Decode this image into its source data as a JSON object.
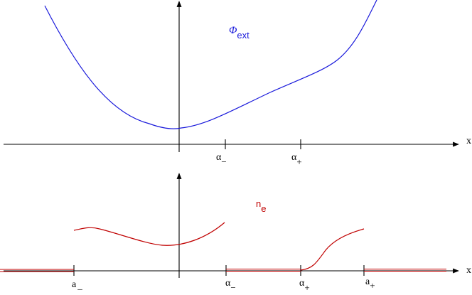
{
  "top_plot": {
    "curve_label_main": "Φ",
    "curve_label_sub": "ext",
    "x_axis_label": "x",
    "ticks": [
      {
        "main": "α",
        "sub": "−"
      },
      {
        "main": "α",
        "sub": "+"
      }
    ]
  },
  "bottom_plot": {
    "curve_label_main": "n",
    "curve_label_sub": "e",
    "x_axis_label": "x",
    "ticks": [
      {
        "main": "a",
        "sub": "_"
      },
      {
        "main": "α",
        "sub": "−"
      },
      {
        "main": "α",
        "sub": "+"
      },
      {
        "main": "a",
        "sub": "+"
      }
    ]
  },
  "colors": {
    "phi_curve": "#1a1adb",
    "ne_curve": "#c00000",
    "axes": "#000000"
  }
}
